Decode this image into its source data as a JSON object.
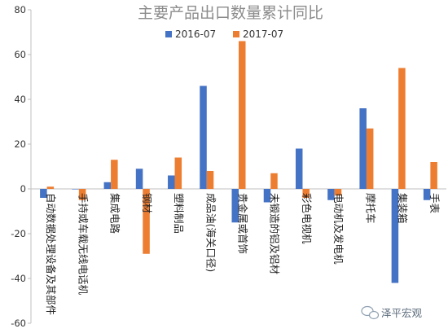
{
  "chart_data": {
    "type": "bar",
    "title": "主要产品出口数量累计同比",
    "xlabel": "",
    "ylabel": "",
    "ylim": [
      -60,
      80
    ],
    "yticks": [
      -60,
      -40,
      -20,
      0,
      20,
      40,
      60,
      80
    ],
    "grid": false,
    "legend_position": "top-center",
    "categories": [
      "自动数据处理设备及其部件",
      "手持或车载无线电话机",
      "集成电路",
      "钢材",
      "塑料制品",
      "成品油(海关口径)",
      "贵金属或首饰",
      "未锻造的铝及铝材",
      "彩色电视机",
      "电动机及发电机",
      "摩托车",
      "集装箱",
      "手表"
    ],
    "series": [
      {
        "name": "2016-07",
        "color": "#4472c4",
        "values": [
          -4,
          0,
          3,
          9,
          6,
          46,
          -15,
          -6,
          18,
          -5,
          36,
          -42,
          -5
        ]
      },
      {
        "name": "2017-07",
        "color": "#ed7d31",
        "values": [
          1,
          -5,
          13,
          -29,
          14,
          8,
          66,
          7,
          -4,
          -3,
          27,
          54,
          12
        ]
      }
    ]
  },
  "watermark": {
    "text": "泽平宏观",
    "icon": "wechat-icon"
  }
}
